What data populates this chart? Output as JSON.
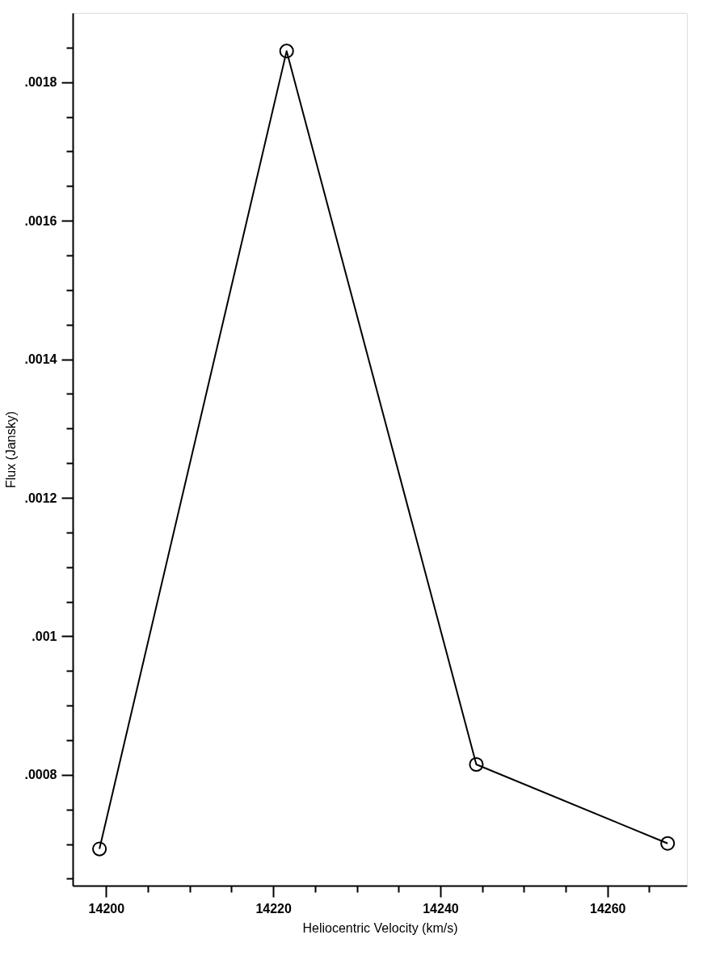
{
  "chart_data": {
    "type": "line",
    "xlabel": "Heliocentric Velocity (km/s)",
    "ylabel": "Flux (Jansky)",
    "x": [
      14199.2,
      14221.6,
      14244.3,
      14267.2
    ],
    "series": [
      {
        "color": "#000000",
        "values": [
          0.000693,
          0.001845,
          0.000815,
          0.000701
        ]
      }
    ],
    "marker": "circle",
    "line_style": "solid",
    "grid": false,
    "xlim": [
      14196,
      14269.5
    ],
    "xticks": [
      14200,
      {
        "value": 14205,
        "label": null
      },
      {
        "value": 14210,
        "label": null
      },
      {
        "value": 14215,
        "label": null
      },
      14220,
      {
        "value": 14225,
        "label": null
      },
      {
        "value": 14230,
        "label": null
      },
      {
        "value": 14235,
        "label": null
      },
      14240,
      {
        "value": 14245,
        "label": null
      },
      {
        "value": 14250,
        "label": null
      },
      {
        "value": 14255,
        "label": null
      },
      14260,
      {
        "value": 14265,
        "label": null
      }
    ],
    "ylim": [
      0.00064,
      0.0019
    ],
    "yticks": [
      {
        "value": 0.00065,
        "label": null
      },
      {
        "value": 0.0007,
        "label": null
      },
      {
        "value": 0.00075,
        "label": null
      },
      {
        "value": 0.0008,
        "label": ".0008"
      },
      {
        "value": 0.00085,
        "label": null
      },
      {
        "value": 0.0009,
        "label": null
      },
      {
        "value": 0.00095,
        "label": null
      },
      {
        "value": 0.001,
        "label": ".001"
      },
      {
        "value": 0.00105,
        "label": null
      },
      {
        "value": 0.0011,
        "label": null
      },
      {
        "value": 0.00115,
        "label": null
      },
      {
        "value": 0.0012,
        "label": ".0012"
      },
      {
        "value": 0.00125,
        "label": null
      },
      {
        "value": 0.0013,
        "label": null
      },
      {
        "value": 0.00135,
        "label": null
      },
      {
        "value": 0.0014,
        "label": ".0014"
      },
      {
        "value": 0.00145,
        "label": null
      },
      {
        "value": 0.0015,
        "label": null
      },
      {
        "value": 0.00155,
        "label": null
      },
      {
        "value": 0.0016,
        "label": ".0016"
      },
      {
        "value": 0.00165,
        "label": null
      },
      {
        "value": 0.0017,
        "label": null
      },
      {
        "value": 0.00175,
        "label": null
      },
      {
        "value": 0.0018,
        "label": ".0018"
      },
      {
        "value": 0.00185,
        "label": null
      }
    ]
  }
}
